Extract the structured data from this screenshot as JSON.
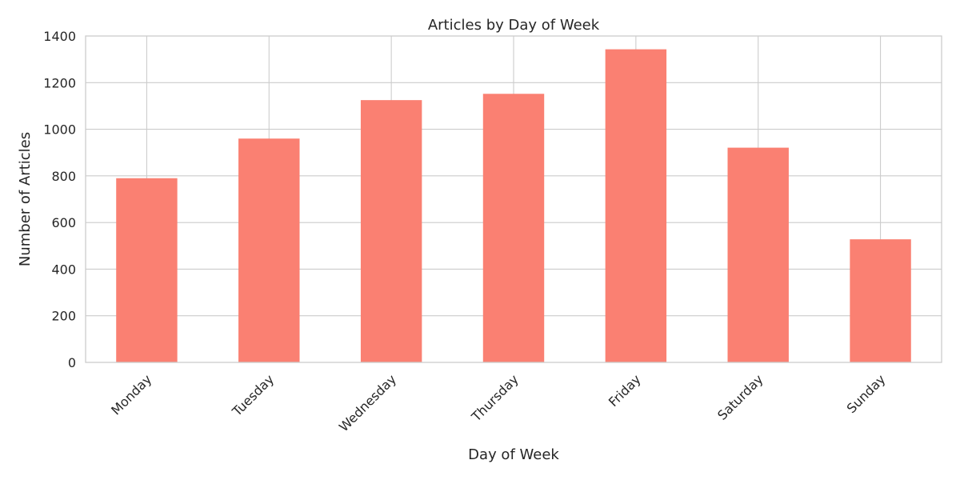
{
  "chart_data": {
    "type": "bar",
    "title": "Articles by Day of Week",
    "xlabel": "Day of Week",
    "ylabel": "Number of Articles",
    "categories": [
      "Monday",
      "Tuesday",
      "Wednesday",
      "Thursday",
      "Friday",
      "Saturday",
      "Sunday"
    ],
    "values": [
      790,
      960,
      1125,
      1152,
      1343,
      921,
      528
    ],
    "ylim": [
      0,
      1400
    ],
    "yticks": [
      0,
      200,
      400,
      600,
      800,
      1000,
      1200,
      1400
    ],
    "ytick_labels": [
      "0",
      "200",
      "400",
      "600",
      "800",
      "1000",
      "1200",
      "1400"
    ],
    "grid": true,
    "bar_color": "#fa8072",
    "grid_color": "#cccccc",
    "text_color": "#262626"
  }
}
